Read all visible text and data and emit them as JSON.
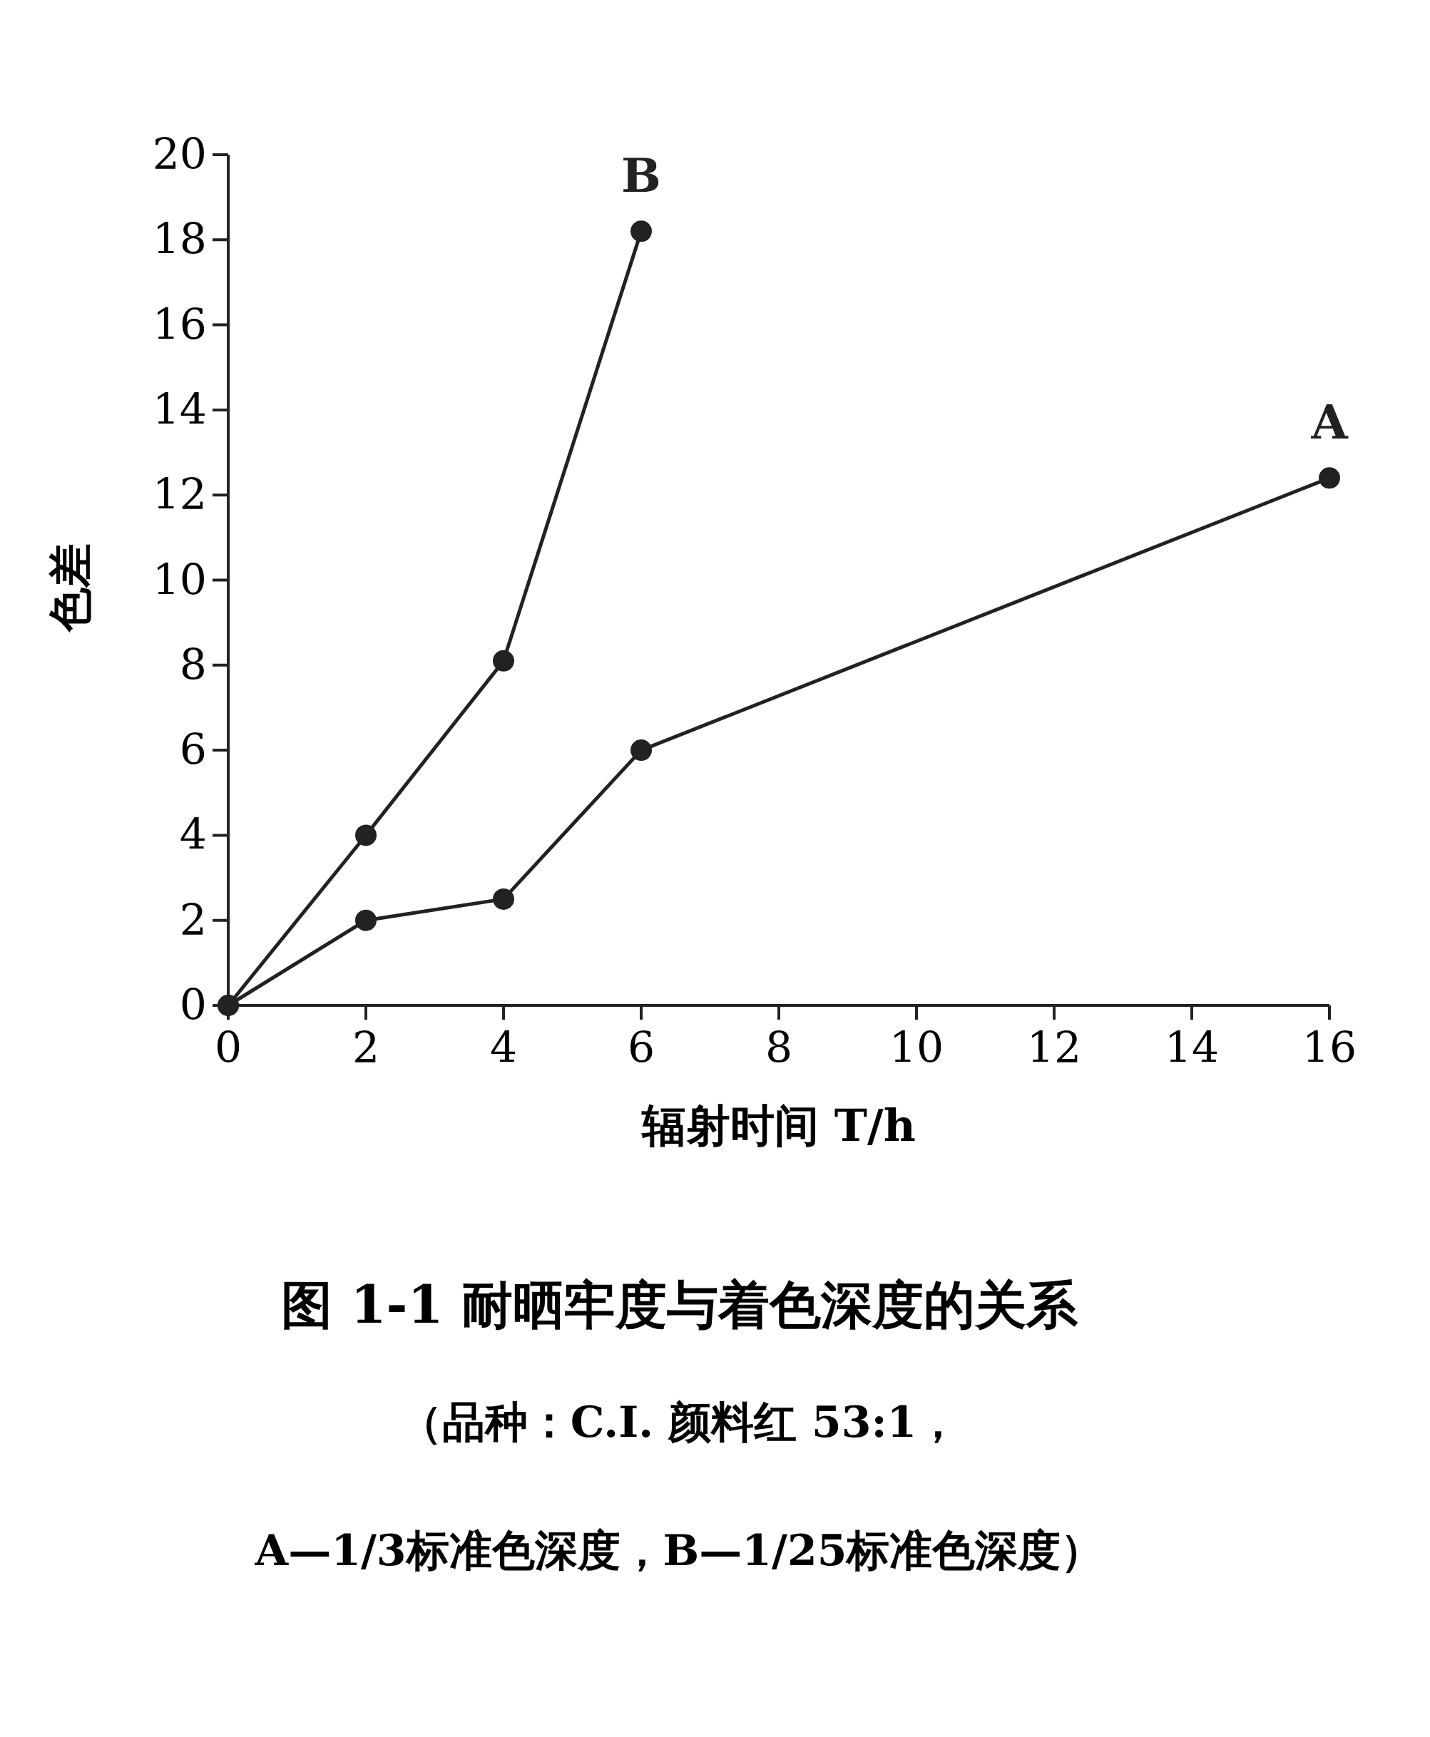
{
  "chart_data": {
    "type": "line",
    "title": "图 1-1 耐晒牢度与着色深度的关系",
    "subtitle": "（品种：C.I. 颜料红 53:1，",
    "annotations": [
      "A—1/3标准色深度，B—1/25标准色深度）"
    ],
    "xlabel": "辐射时间 T/h",
    "ylabel": "色差",
    "xlim": [
      0,
      16
    ],
    "ylim": [
      0,
      20
    ],
    "xticks": [
      0,
      2,
      4,
      6,
      8,
      10,
      12,
      14,
      16
    ],
    "yticks": [
      0,
      2,
      4,
      6,
      8,
      10,
      12,
      14,
      16,
      18,
      20
    ],
    "marker": "circle",
    "line_style": "solid",
    "grid": false,
    "series": [
      {
        "name": "A",
        "color": "#222222",
        "x": [
          0,
          2,
          4,
          6,
          16
        ],
        "values": [
          0,
          2,
          2.5,
          6,
          12.4
        ]
      },
      {
        "name": "B",
        "color": "#222222",
        "x": [
          0,
          2,
          4,
          6
        ],
        "values": [
          0,
          4,
          8.1,
          18.2
        ]
      }
    ]
  }
}
